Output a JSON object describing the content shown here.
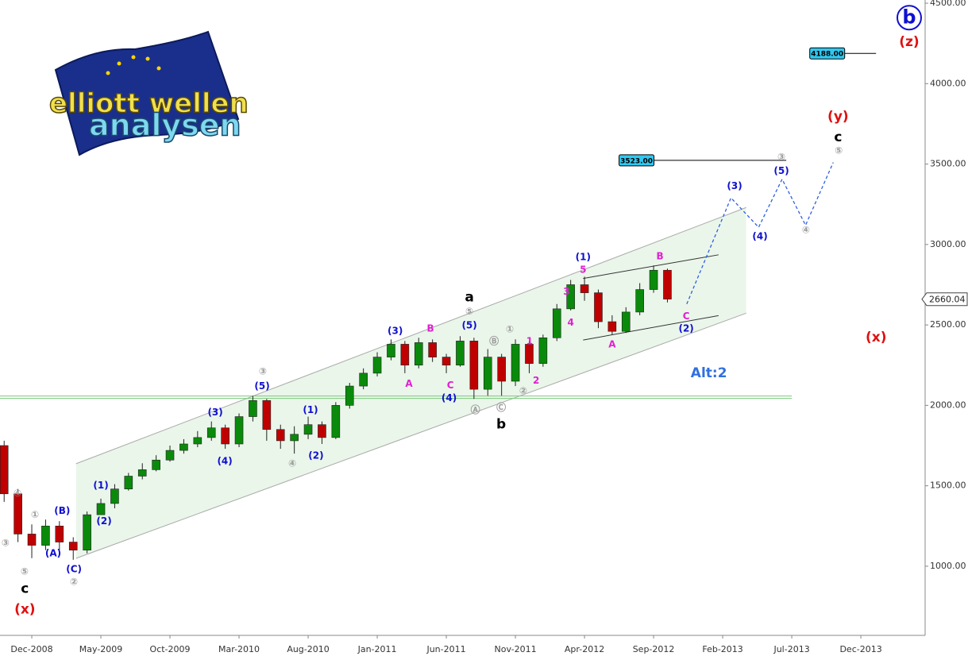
{
  "logo": {
    "line1": "elliott wellen",
    "line2": "analysen"
  },
  "chart_data": {
    "type": "candlestick",
    "xlim": [
      -2.3,
      64.65
    ],
    "ylim": [
      570,
      4520
    ],
    "xticks": [
      {
        "value": 0,
        "label": "Dec-2008"
      },
      {
        "value": 5,
        "label": "May-2009"
      },
      {
        "value": 10,
        "label": "Oct-2009"
      },
      {
        "value": 15,
        "label": "Mar-2010"
      },
      {
        "value": 20,
        "label": "Aug-2010"
      },
      {
        "value": 25,
        "label": "Jan-2011"
      },
      {
        "value": 30,
        "label": "Jun-2011"
      },
      {
        "value": 35,
        "label": "Nov-2011"
      },
      {
        "value": 40,
        "label": "Apr-2012"
      },
      {
        "value": 45,
        "label": "Sep-2012"
      },
      {
        "value": 50,
        "label": "Feb-2013"
      },
      {
        "value": 55,
        "label": "Jul-2013"
      },
      {
        "value": 60,
        "label": "Dec-2013"
      }
    ],
    "yticks": [
      {
        "value": 1000,
        "label": "1000.00"
      },
      {
        "value": 1500,
        "label": "1500.00"
      },
      {
        "value": 2000,
        "label": "2000.00"
      },
      {
        "value": 2500,
        "label": "2500.00"
      },
      {
        "value": 3000,
        "label": "3000.00"
      },
      {
        "value": 3500,
        "label": "3500.00"
      },
      {
        "value": 4000,
        "label": "4000.00"
      },
      {
        "value": 4500,
        "label": "4500.00"
      }
    ],
    "up_color": "#0a8a0a",
    "down_color": "#c00000",
    "candles": [
      {
        "x": -2,
        "open": 1750,
        "high": 1780,
        "low": 1400,
        "close": 1450
      },
      {
        "x": -1,
        "open": 1450,
        "high": 1480,
        "low": 1150,
        "close": 1200
      },
      {
        "x": 0,
        "open": 1200,
        "high": 1260,
        "low": 1050,
        "close": 1130
      },
      {
        "x": 1,
        "open": 1130,
        "high": 1290,
        "low": 1100,
        "close": 1250
      },
      {
        "x": 2,
        "open": 1250,
        "high": 1280,
        "low": 1100,
        "close": 1150
      },
      {
        "x": 3,
        "open": 1150,
        "high": 1180,
        "low": 1040,
        "close": 1100
      },
      {
        "x": 4,
        "open": 1100,
        "high": 1340,
        "low": 1080,
        "close": 1320
      },
      {
        "x": 5,
        "open": 1320,
        "high": 1420,
        "low": 1330,
        "close": 1390
      },
      {
        "x": 6,
        "open": 1390,
        "high": 1510,
        "low": 1360,
        "close": 1480
      },
      {
        "x": 7,
        "open": 1480,
        "high": 1580,
        "low": 1470,
        "close": 1560
      },
      {
        "x": 8,
        "open": 1560,
        "high": 1640,
        "low": 1540,
        "close": 1600
      },
      {
        "x": 9,
        "open": 1600,
        "high": 1690,
        "low": 1590,
        "close": 1660
      },
      {
        "x": 10,
        "open": 1660,
        "high": 1750,
        "low": 1650,
        "close": 1720
      },
      {
        "x": 11,
        "open": 1720,
        "high": 1790,
        "low": 1700,
        "close": 1760
      },
      {
        "x": 12,
        "open": 1760,
        "high": 1840,
        "low": 1740,
        "close": 1800
      },
      {
        "x": 13,
        "open": 1800,
        "high": 1900,
        "low": 1780,
        "close": 1860
      },
      {
        "x": 14,
        "open": 1860,
        "high": 1880,
        "low": 1730,
        "close": 1760
      },
      {
        "x": 15,
        "open": 1760,
        "high": 1950,
        "low": 1740,
        "close": 1930
      },
      {
        "x": 16,
        "open": 1930,
        "high": 2060,
        "low": 1900,
        "close": 2030
      },
      {
        "x": 17,
        "open": 2030,
        "high": 2040,
        "low": 1780,
        "close": 1850
      },
      {
        "x": 18,
        "open": 1850,
        "high": 1880,
        "low": 1730,
        "close": 1780
      },
      {
        "x": 19,
        "open": 1780,
        "high": 1870,
        "low": 1700,
        "close": 1820
      },
      {
        "x": 20,
        "open": 1820,
        "high": 1930,
        "low": 1790,
        "close": 1880
      },
      {
        "x": 21,
        "open": 1880,
        "high": 1900,
        "low": 1760,
        "close": 1800
      },
      {
        "x": 22,
        "open": 1800,
        "high": 2020,
        "low": 1790,
        "close": 2000
      },
      {
        "x": 23,
        "open": 2000,
        "high": 2140,
        "low": 1980,
        "close": 2120
      },
      {
        "x": 24,
        "open": 2120,
        "high": 2230,
        "low": 2100,
        "close": 2200
      },
      {
        "x": 25,
        "open": 2200,
        "high": 2330,
        "low": 2180,
        "close": 2300
      },
      {
        "x": 26,
        "open": 2300,
        "high": 2410,
        "low": 2280,
        "close": 2380
      },
      {
        "x": 27,
        "open": 2380,
        "high": 2400,
        "low": 2200,
        "close": 2250
      },
      {
        "x": 28,
        "open": 2250,
        "high": 2420,
        "low": 2230,
        "close": 2390
      },
      {
        "x": 29,
        "open": 2390,
        "high": 2410,
        "low": 2270,
        "close": 2300
      },
      {
        "x": 30,
        "open": 2300,
        "high": 2320,
        "low": 2200,
        "close": 2250
      },
      {
        "x": 31,
        "open": 2250,
        "high": 2430,
        "low": 2240,
        "close": 2400
      },
      {
        "x": 32,
        "open": 2400,
        "high": 2420,
        "low": 2040,
        "close": 2100
      },
      {
        "x": 33,
        "open": 2100,
        "high": 2350,
        "low": 2060,
        "close": 2300
      },
      {
        "x": 34,
        "open": 2300,
        "high": 2320,
        "low": 2060,
        "close": 2150
      },
      {
        "x": 35,
        "open": 2150,
        "high": 2410,
        "low": 2120,
        "close": 2380
      },
      {
        "x": 36,
        "open": 2380,
        "high": 2400,
        "low": 2200,
        "close": 2260
      },
      {
        "x": 37,
        "open": 2260,
        "high": 2440,
        "low": 2240,
        "close": 2420
      },
      {
        "x": 38,
        "open": 2420,
        "high": 2630,
        "low": 2400,
        "close": 2600
      },
      {
        "x": 39,
        "open": 2600,
        "high": 2780,
        "low": 2590,
        "close": 2750
      },
      {
        "x": 40,
        "open": 2750,
        "high": 2800,
        "low": 2650,
        "close": 2700
      },
      {
        "x": 41,
        "open": 2700,
        "high": 2720,
        "low": 2480,
        "close": 2520
      },
      {
        "x": 42,
        "open": 2520,
        "high": 2560,
        "low": 2440,
        "close": 2460
      },
      {
        "x": 43,
        "open": 2460,
        "high": 2610,
        "low": 2450,
        "close": 2580
      },
      {
        "x": 44,
        "open": 2580,
        "high": 2760,
        "low": 2560,
        "close": 2720
      },
      {
        "x": 45,
        "open": 2720,
        "high": 2870,
        "low": 2700,
        "close": 2840
      },
      {
        "x": 46,
        "open": 2840,
        "high": 2850,
        "low": 2640,
        "close": 2660.04
      }
    ],
    "last_price": {
      "value": 2660.04,
      "label": "2660.04"
    },
    "channel": {
      "x": [
        3.2,
        51.7
      ],
      "upper": [
        1637,
        3230
      ],
      "lower": [
        1049,
        2573
      ],
      "color": "#9fd49f"
    },
    "wedge": {
      "x": [
        39.9,
        49.7
      ],
      "upper": [
        2789,
        2936
      ],
      "lower": [
        2406,
        2558
      ]
    },
    "support": {
      "x": [
        -2.3,
        55.0
      ],
      "values": [
        2043,
        2058
      ],
      "color": "#7cc87c"
    },
    "projection": {
      "x": [
        47.4,
        50.6,
        52.6,
        54.3,
        56.0,
        58.0
      ],
      "y": [
        2630,
        3290,
        3107,
        3406,
        3120,
        3510
      ],
      "color": "#3060e0"
    },
    "targets": [
      {
        "value": 3523,
        "label": "3523.00",
        "x": [
          42.5,
          54.6
        ]
      },
      {
        "value": 4188,
        "label": "4188.00",
        "x": [
          56.3,
          61.1
        ]
      }
    ],
    "annotations": [
      {
        "text": "(B)",
        "x": 2.2,
        "y": 1343,
        "color": "#1010d0"
      },
      {
        "text": "(A)",
        "x": 1.55,
        "y": 1078,
        "color": "#1010d0"
      },
      {
        "text": "(C)",
        "x": 3.05,
        "y": 980,
        "color": "#1010d0"
      },
      {
        "text": "①",
        "x": 0.23,
        "y": 1318,
        "color": "#999999"
      },
      {
        "text": "④",
        "x": -1.03,
        "y": 1451,
        "color": "#999999"
      },
      {
        "text": "③",
        "x": -1.9,
        "y": 1142,
        "color": "#999999"
      },
      {
        "text": "⑤",
        "x": -0.52,
        "y": 966,
        "color": "#999999"
      },
      {
        "text": "②",
        "x": 3.05,
        "y": 902,
        "color": "#999999"
      },
      {
        "text": "c",
        "x": -0.5,
        "y": 858,
        "color": "#000000",
        "big": true
      },
      {
        "text": "(x)",
        "x": -0.5,
        "y": 730,
        "color": "#e01010",
        "big": true
      },
      {
        "text": "(1)",
        "x": 5.0,
        "y": 1500,
        "color": "#1010d0"
      },
      {
        "text": "(2)",
        "x": 5.23,
        "y": 1279,
        "color": "#1010d0"
      },
      {
        "text": "(3)",
        "x": 13.28,
        "y": 1955,
        "color": "#1010d0"
      },
      {
        "text": "(4)",
        "x": 13.97,
        "y": 1652,
        "color": "#1010d0"
      },
      {
        "text": "③",
        "x": 16.72,
        "y": 2210,
        "color": "#999999"
      },
      {
        "text": "(5)",
        "x": 16.67,
        "y": 2117,
        "color": "#1010d0"
      },
      {
        "text": "(1)",
        "x": 20.17,
        "y": 1970,
        "color": "#1010d0"
      },
      {
        "text": "④",
        "x": 18.85,
        "y": 1637,
        "color": "#999999"
      },
      {
        "text": "(2)",
        "x": 20.57,
        "y": 1686,
        "color": "#1010d0"
      },
      {
        "text": "(3)",
        "x": 26.3,
        "y": 2460,
        "color": "#1010d0"
      },
      {
        "text": "A",
        "x": 27.3,
        "y": 2132,
        "color": "#e020d0"
      },
      {
        "text": "B",
        "x": 28.85,
        "y": 2475,
        "color": "#e020d0"
      },
      {
        "text": "C",
        "x": 30.29,
        "y": 2122,
        "color": "#e020d0"
      },
      {
        "text": "(5)",
        "x": 31.67,
        "y": 2495,
        "color": "#1010d0"
      },
      {
        "text": "⑤",
        "x": 31.67,
        "y": 2583,
        "color": "#999999"
      },
      {
        "text": "a",
        "x": 31.67,
        "y": 2671,
        "color": "#000000",
        "big": true
      },
      {
        "text": "(4)",
        "x": 30.2,
        "y": 2044,
        "color": "#1010d0"
      },
      {
        "text": "Ⓐ",
        "x": 32.1,
        "y": 1970,
        "color": "#999999"
      },
      {
        "text": "Ⓑ",
        "x": 33.45,
        "y": 2396,
        "color": "#999999"
      },
      {
        "text": "Ⓒ",
        "x": 33.97,
        "y": 1985,
        "color": "#999999"
      },
      {
        "text": "b",
        "x": 33.97,
        "y": 1882,
        "color": "#000000",
        "big": true
      },
      {
        "text": "①",
        "x": 34.6,
        "y": 2470,
        "color": "#999999"
      },
      {
        "text": "②",
        "x": 35.57,
        "y": 2088,
        "color": "#999999"
      },
      {
        "text": "1",
        "x": 36.03,
        "y": 2397,
        "color": "#e020d0"
      },
      {
        "text": "2",
        "x": 36.5,
        "y": 2152,
        "color": "#e020d0"
      },
      {
        "text": "3",
        "x": 38.7,
        "y": 2705,
        "color": "#e020d0"
      },
      {
        "text": "4",
        "x": 39.0,
        "y": 2514,
        "color": "#e020d0"
      },
      {
        "text": "5",
        "x": 39.9,
        "y": 2842,
        "color": "#e020d0"
      },
      {
        "text": "(1)",
        "x": 39.9,
        "y": 2920,
        "color": "#1010d0"
      },
      {
        "text": "A",
        "x": 42.0,
        "y": 2377,
        "color": "#e020d0"
      },
      {
        "text": "B",
        "x": 45.46,
        "y": 2925,
        "color": "#e020d0"
      },
      {
        "text": "C",
        "x": 47.36,
        "y": 2553,
        "color": "#e020d0"
      },
      {
        "text": "(2)",
        "x": 47.36,
        "y": 2475,
        "color": "#1010d0"
      },
      {
        "text": "Alt:2",
        "x": 49.0,
        "y": 2200,
        "color": "#3070e0",
        "big": true
      },
      {
        "text": "(3)",
        "x": 50.86,
        "y": 3362,
        "color": "#1010d0"
      },
      {
        "text": "(4)",
        "x": 52.7,
        "y": 3048,
        "color": "#1010d0"
      },
      {
        "text": "③",
        "x": 54.25,
        "y": 3543,
        "color": "#999999"
      },
      {
        "text": "(5)",
        "x": 54.25,
        "y": 3455,
        "color": "#1010d0"
      },
      {
        "text": "④",
        "x": 56.03,
        "y": 3087,
        "color": "#999999"
      },
      {
        "text": "⑤",
        "x": 58.4,
        "y": 3582,
        "color": "#999999"
      },
      {
        "text": "c",
        "x": 58.35,
        "y": 3666,
        "color": "#000000",
        "big": true
      },
      {
        "text": "(y)",
        "x": 58.35,
        "y": 3793,
        "color": "#e01010",
        "big": true
      },
      {
        "text": "(x)",
        "x": 61.1,
        "y": 2421,
        "color": "#e01010",
        "big": true
      },
      {
        "text": "(z)",
        "x": 63.5,
        "y": 4258,
        "color": "#e01010",
        "big": true
      },
      {
        "text": "b",
        "x": 63.5,
        "y": 4410,
        "color": "#1010d0",
        "big": true,
        "circle": true
      }
    ]
  }
}
